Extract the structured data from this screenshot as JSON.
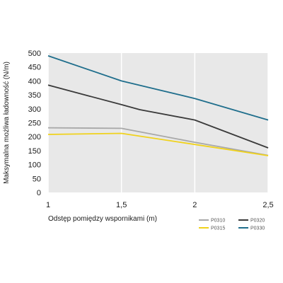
{
  "chart_data": {
    "type": "line",
    "title": "",
    "xlabel": "Odstęp pomiędzy wspornikami (m)",
    "ylabel": "Maksymalna możliwa ładowność (N/m)",
    "xlim": [
      1,
      2.5
    ],
    "ylim": [
      0,
      500
    ],
    "x_ticks": [
      1,
      1.5,
      2,
      2.5
    ],
    "x_tick_labels": [
      "1",
      "1,5",
      "2",
      "2,5"
    ],
    "y_ticks": [
      0,
      50,
      100,
      150,
      200,
      250,
      300,
      350,
      400,
      450,
      500
    ],
    "y_tick_labels": [
      "0",
      "50",
      "100",
      "150",
      "200",
      "250",
      "300",
      "350",
      "400",
      "450",
      "500"
    ],
    "grid": "vertical lines at x ticks",
    "plot_background": "#e8e8e8",
    "legend_position": "bottom-right",
    "series": [
      {
        "name": "P0310",
        "color": "#a8a8a8",
        "x": [
          1,
          1.5,
          2,
          2.5
        ],
        "y": [
          232,
          230,
          180,
          133
        ]
      },
      {
        "name": "P0315",
        "color": "#f0d21c",
        "x": [
          1,
          1.5,
          2,
          2.5
        ],
        "y": [
          208,
          212,
          172,
          132
        ]
      },
      {
        "name": "P0320",
        "color": "#3a3a3a",
        "x": [
          1,
          1.5,
          1.625,
          2,
          2.5
        ],
        "y": [
          385,
          315,
          297,
          260,
          160
        ]
      },
      {
        "name": "P0330",
        "color": "#1f6e8c",
        "x": [
          1,
          1.5,
          2,
          2.5
        ],
        "y": [
          490,
          400,
          337,
          260
        ]
      }
    ]
  }
}
